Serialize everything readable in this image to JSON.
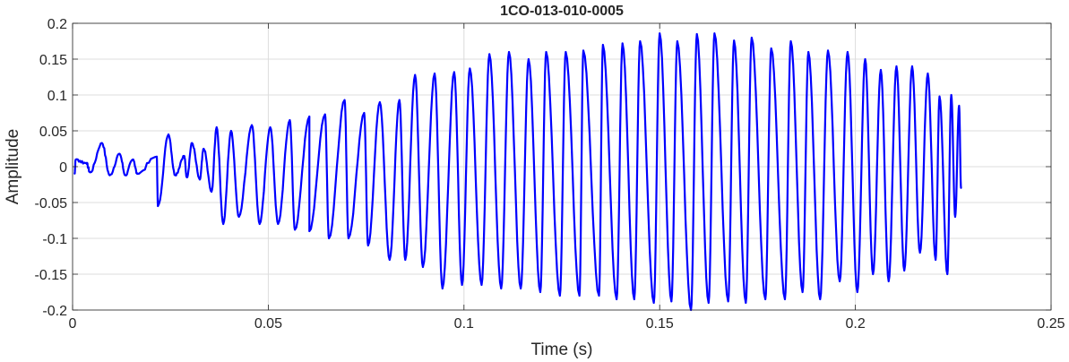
{
  "chart_data": {
    "type": "line",
    "title": "1CO-013-010-0005",
    "xlabel": "Time (s)",
    "ylabel": "Amplitude",
    "xlim": [
      0,
      0.25
    ],
    "ylim": [
      -0.2,
      0.2
    ],
    "xticks": [
      0,
      0.05,
      0.1,
      0.15,
      0.2,
      0.25
    ],
    "xtick_labels": [
      "0",
      "0.05",
      "0.1",
      "0.15",
      "0.2",
      "0.25"
    ],
    "yticks": [
      0.2,
      0.15,
      0.1,
      0.05,
      0,
      -0.05,
      -0.1,
      -0.15,
      -0.2
    ],
    "ytick_labels": [
      "0.2",
      "0.15",
      "0.1",
      "0.05",
      "0",
      "-0.05",
      "-0.1",
      "-0.15",
      "-0.2"
    ],
    "grid": true,
    "line_color": "#0000ff",
    "series": [
      {
        "peaks": [
          [
            0.0008,
            0.01
          ],
          [
            0.0035,
            0.005
          ],
          [
            0.0075,
            0.033
          ],
          [
            0.012,
            0.018
          ],
          [
            0.0155,
            0.01
          ],
          [
            0.0215,
            0.014
          ],
          [
            0.0245,
            0.045
          ],
          [
            0.0285,
            0.015
          ],
          [
            0.0305,
            0.033
          ],
          [
            0.0335,
            0.025
          ],
          [
            0.0368,
            0.055
          ],
          [
            0.0405,
            0.05
          ],
          [
            0.0458,
            0.058
          ],
          [
            0.0505,
            0.055
          ],
          [
            0.0555,
            0.065
          ],
          [
            0.0605,
            0.07
          ],
          [
            0.0645,
            0.073
          ],
          [
            0.0695,
            0.093
          ],
          [
            0.0745,
            0.075
          ],
          [
            0.0785,
            0.09
          ],
          [
            0.0835,
            0.093
          ],
          [
            0.0875,
            0.128
          ],
          [
            0.0925,
            0.13
          ],
          [
            0.0975,
            0.132
          ],
          [
            0.1015,
            0.137
          ],
          [
            0.1065,
            0.157
          ],
          [
            0.1115,
            0.16
          ],
          [
            0.1165,
            0.15
          ],
          [
            0.121,
            0.16
          ],
          [
            0.126,
            0.16
          ],
          [
            0.1305,
            0.162
          ],
          [
            0.1355,
            0.17
          ],
          [
            0.1405,
            0.172
          ],
          [
            0.145,
            0.175
          ],
          [
            0.15,
            0.186
          ],
          [
            0.1545,
            0.175
          ],
          [
            0.1595,
            0.185
          ],
          [
            0.164,
            0.186
          ],
          [
            0.169,
            0.176
          ],
          [
            0.1735,
            0.18
          ],
          [
            0.1785,
            0.165
          ],
          [
            0.1835,
            0.175
          ],
          [
            0.188,
            0.16
          ],
          [
            0.193,
            0.162
          ],
          [
            0.198,
            0.16
          ],
          [
            0.2025,
            0.15
          ],
          [
            0.2065,
            0.135
          ],
          [
            0.2105,
            0.14
          ],
          [
            0.2145,
            0.14
          ],
          [
            0.2185,
            0.13
          ],
          [
            0.2215,
            0.098
          ],
          [
            0.2245,
            0.1
          ],
          [
            0.2265,
            0.085
          ]
        ],
        "troughs": [
          [
            0.0005,
            -0.01
          ],
          [
            0.0045,
            -0.008
          ],
          [
            0.0095,
            -0.012
          ],
          [
            0.0135,
            -0.012
          ],
          [
            0.0165,
            -0.01
          ],
          [
            0.0218,
            -0.055
          ],
          [
            0.0262,
            -0.012
          ],
          [
            0.0292,
            -0.015
          ],
          [
            0.0325,
            -0.018
          ],
          [
            0.0355,
            -0.035
          ],
          [
            0.0385,
            -0.08
          ],
          [
            0.0425,
            -0.07
          ],
          [
            0.0478,
            -0.08
          ],
          [
            0.0525,
            -0.08
          ],
          [
            0.0568,
            -0.088
          ],
          [
            0.0605,
            -0.09
          ],
          [
            0.0655,
            -0.1
          ],
          [
            0.0705,
            -0.1
          ],
          [
            0.0755,
            -0.11
          ],
          [
            0.081,
            -0.13
          ],
          [
            0.085,
            -0.13
          ],
          [
            0.0895,
            -0.14
          ],
          [
            0.0945,
            -0.17
          ],
          [
            0.0995,
            -0.165
          ],
          [
            0.1045,
            -0.165
          ],
          [
            0.1095,
            -0.17
          ],
          [
            0.1145,
            -0.17
          ],
          [
            0.1195,
            -0.175
          ],
          [
            0.1245,
            -0.18
          ],
          [
            0.1295,
            -0.18
          ],
          [
            0.1345,
            -0.18
          ],
          [
            0.139,
            -0.185
          ],
          [
            0.1435,
            -0.185
          ],
          [
            0.1485,
            -0.19
          ],
          [
            0.153,
            -0.188
          ],
          [
            0.158,
            -0.2
          ],
          [
            0.1625,
            -0.19
          ],
          [
            0.1675,
            -0.188
          ],
          [
            0.172,
            -0.19
          ],
          [
            0.177,
            -0.185
          ],
          [
            0.182,
            -0.185
          ],
          [
            0.1865,
            -0.175
          ],
          [
            0.191,
            -0.185
          ],
          [
            0.196,
            -0.16
          ],
          [
            0.2005,
            -0.175
          ],
          [
            0.2045,
            -0.15
          ],
          [
            0.2085,
            -0.16
          ],
          [
            0.2125,
            -0.145
          ],
          [
            0.2165,
            -0.12
          ],
          [
            0.2205,
            -0.13
          ],
          [
            0.2235,
            -0.15
          ],
          [
            0.2255,
            -0.07
          ],
          [
            0.227,
            -0.03
          ]
        ]
      }
    ]
  }
}
